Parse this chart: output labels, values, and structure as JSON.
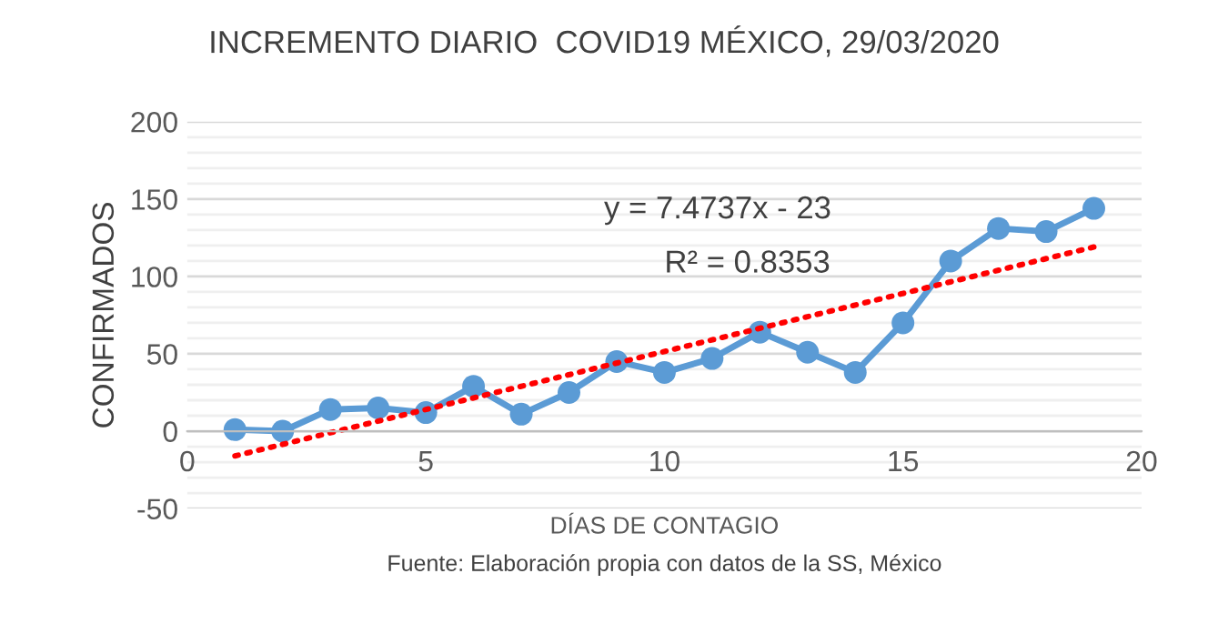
{
  "chart_data": {
    "type": "line",
    "title": "INCREMENTO DIARIO  COVID19 MÉXICO, 29/03/2020",
    "xlabel": "DÍAS DE CONTAGIO",
    "ylabel": "CONFIRMADOS",
    "annotations": [
      "y = 7.4737x - 23",
      "R² = 0.8353",
      "Fuente: Elaboración propia con datos de la SS, México"
    ],
    "series": [
      {
        "color": "#5b9bd5",
        "marker": "circle",
        "line_style": "solid",
        "x": [
          1,
          2,
          3,
          4,
          5,
          6,
          7,
          8,
          9,
          10,
          11,
          12,
          13,
          14,
          15,
          16,
          17,
          18,
          19
        ],
        "values": [
          1,
          0,
          14,
          15,
          12,
          29,
          11,
          25,
          45,
          38,
          47,
          64,
          51,
          38,
          70,
          110,
          131,
          129,
          144
        ]
      },
      {
        "color": "#ff0000",
        "marker": "none",
        "line_style": "dotted",
        "x": [
          1,
          19
        ],
        "values": [
          -16,
          119
        ]
      }
    ],
    "xlim": [
      0,
      20
    ],
    "xticks": [
      0,
      5,
      10,
      15,
      20
    ],
    "ylim": [
      -50,
      200
    ],
    "yticks": [
      -50,
      {
        "value": -40,
        "label": null
      },
      {
        "value": -30,
        "label": null
      },
      {
        "value": -20,
        "label": null
      },
      {
        "value": -10,
        "label": null
      },
      0,
      {
        "value": 10,
        "label": null
      },
      {
        "value": 20,
        "label": null
      },
      {
        "value": 30,
        "label": null
      },
      {
        "value": 40,
        "label": null
      },
      50,
      {
        "value": 60,
        "label": null
      },
      {
        "value": 70,
        "label": null
      },
      {
        "value": 80,
        "label": null
      },
      {
        "value": 90,
        "label": null
      },
      100,
      {
        "value": 110,
        "label": null
      },
      {
        "value": 120,
        "label": null
      },
      {
        "value": 130,
        "label": null
      },
      {
        "value": 140,
        "label": null
      },
      150,
      {
        "value": 160,
        "label": null
      },
      {
        "value": 170,
        "label": null
      },
      {
        "value": 180,
        "label": null
      },
      {
        "value": 190,
        "label": null
      },
      200
    ],
    "grid": "y",
    "legend": false
  }
}
